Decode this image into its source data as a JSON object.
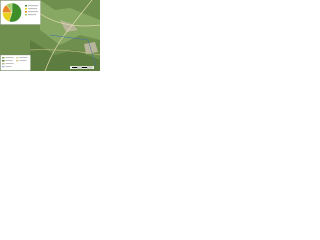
{
  "chart_data": {
    "type": "pie",
    "values": [
      55,
      20,
      15,
      10
    ],
    "colors": [
      "#3e8e2a",
      "#e8d21d",
      "#e8872a",
      "#a8cf6a"
    ]
  }
}
